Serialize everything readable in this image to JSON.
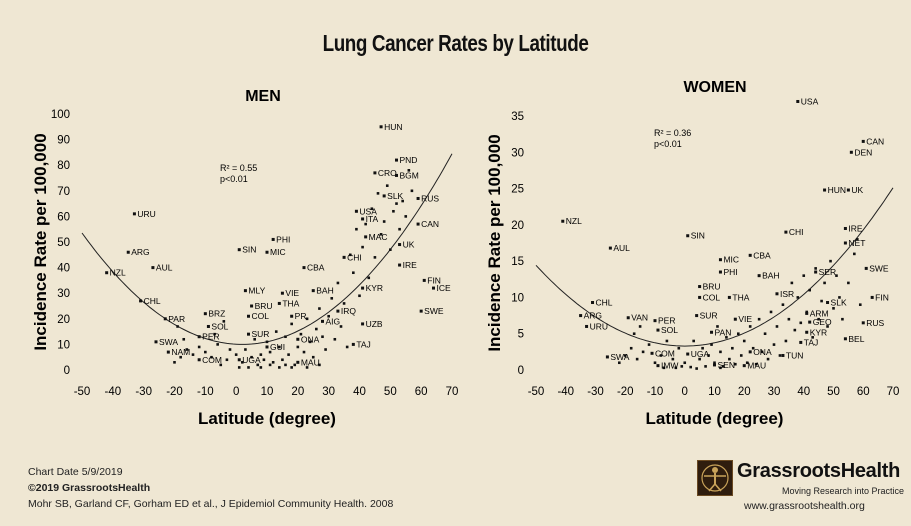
{
  "title": "Lung Cancer Rates by Latitude",
  "footer": {
    "chart_date": "Chart Date 5/9/2019",
    "copyright": "©2019 GrassrootsHealth",
    "citation": "Mohr SB, Garland CF, Gorham ED et al., J Epidemiol Community Health. 2008"
  },
  "brand": {
    "name": "GrassrootsHealth",
    "tagline": "Moving Research into Practice",
    "url": "www.grassrootshealth.org"
  },
  "colors": {
    "background": "#efe7d3",
    "ink": "#111111",
    "logo": "#2f1d0e"
  },
  "chart_data": [
    {
      "type": "scatter",
      "title": "MEN",
      "xlabel": "Latitude (degree)",
      "ylabel": "Incidence Rate per 100,000",
      "xlim": [
        -50,
        70
      ],
      "ylim": [
        0,
        100
      ],
      "xticks": [
        -50,
        -40,
        -30,
        -20,
        -10,
        0,
        10,
        20,
        30,
        40,
        50,
        60,
        70
      ],
      "yticks": [
        0,
        10,
        20,
        30,
        40,
        50,
        60,
        70,
        80,
        90,
        100
      ],
      "stat_r2": "R² = 0.55",
      "stat_p": "p<0.01",
      "trend": {
        "type": "quadratic",
        "vertex_x": 2,
        "vertex_y": 10,
        "a": 0.0161
      },
      "labeled_points": [
        {
          "label": "HUN",
          "x": 47,
          "y": 95
        },
        {
          "label": "PND",
          "x": 52,
          "y": 82
        },
        {
          "label": "CRO",
          "x": 45,
          "y": 77
        },
        {
          "label": "BGM",
          "x": 52,
          "y": 76
        },
        {
          "label": "SLK",
          "x": 48,
          "y": 68
        },
        {
          "label": "RUS",
          "x": 59,
          "y": 67
        },
        {
          "label": "URU",
          "x": -33,
          "y": 61
        },
        {
          "label": "USA",
          "x": 39,
          "y": 62
        },
        {
          "label": "ITA",
          "x": 41,
          "y": 59
        },
        {
          "label": "CAN",
          "x": 59,
          "y": 57
        },
        {
          "label": "PHI",
          "x": 12,
          "y": 51
        },
        {
          "label": "SIN",
          "x": 1,
          "y": 47
        },
        {
          "label": "MIC",
          "x": 10,
          "y": 46
        },
        {
          "label": "MAC",
          "x": 42,
          "y": 52
        },
        {
          "label": "UK",
          "x": 53,
          "y": 49
        },
        {
          "label": "ARG",
          "x": -35,
          "y": 46
        },
        {
          "label": "CHI",
          "x": 35,
          "y": 44
        },
        {
          "label": "AUL",
          "x": -27,
          "y": 40
        },
        {
          "label": "CBA",
          "x": 22,
          "y": 40
        },
        {
          "label": "IRE",
          "x": 53,
          "y": 41
        },
        {
          "label": "NZL",
          "x": -42,
          "y": 38
        },
        {
          "label": "FIN",
          "x": 61,
          "y": 35
        },
        {
          "label": "ICE",
          "x": 64,
          "y": 32
        },
        {
          "label": "MLY",
          "x": 3,
          "y": 31
        },
        {
          "label": "VIE",
          "x": 15,
          "y": 30
        },
        {
          "label": "BAH",
          "x": 25,
          "y": 31
        },
        {
          "label": "KYR",
          "x": 41,
          "y": 32
        },
        {
          "label": "CHL",
          "x": -31,
          "y": 27
        },
        {
          "label": "THA",
          "x": 14,
          "y": 26
        },
        {
          "label": "BRU",
          "x": 5,
          "y": 25
        },
        {
          "label": "IRQ",
          "x": 33,
          "y": 23
        },
        {
          "label": "SWE",
          "x": 60,
          "y": 23
        },
        {
          "label": "BRZ",
          "x": -10,
          "y": 22
        },
        {
          "label": "COL",
          "x": 4,
          "y": 21
        },
        {
          "label": "PR",
          "x": 18,
          "y": 21
        },
        {
          "label": "PAR",
          "x": -23,
          "y": 20
        },
        {
          "label": "AIG",
          "x": 28,
          "y": 19
        },
        {
          "label": "UZB",
          "x": 41,
          "y": 18
        },
        {
          "label": "SOL",
          "x": -9,
          "y": 17
        },
        {
          "label": "SUR",
          "x": 4,
          "y": 14
        },
        {
          "label": "PER",
          "x": -12,
          "y": 13
        },
        {
          "label": "SWA",
          "x": -26,
          "y": 11
        },
        {
          "label": "GUI",
          "x": 10,
          "y": 9
        },
        {
          "label": "TAJ",
          "x": 38,
          "y": 10
        },
        {
          "label": "NAM",
          "x": -22,
          "y": 7
        },
        {
          "label": "ONA",
          "x": 20,
          "y": 12
        },
        {
          "label": "COM",
          "x": -12,
          "y": 4
        },
        {
          "label": "UGA",
          "x": 1,
          "y": 4
        },
        {
          "label": "MAU",
          "x": 20,
          "y": 3
        }
      ],
      "unlabeled_points": [
        [
          -20,
          3
        ],
        [
          -18,
          5
        ],
        [
          -16,
          8
        ],
        [
          -14,
          6
        ],
        [
          -12,
          9
        ],
        [
          -10,
          7
        ],
        [
          -8,
          5
        ],
        [
          -6,
          10
        ],
        [
          -5,
          2
        ],
        [
          -3,
          4
        ],
        [
          -2,
          8
        ],
        [
          0,
          6
        ],
        [
          2,
          3
        ],
        [
          3,
          8
        ],
        [
          5,
          5
        ],
        [
          6,
          12
        ],
        [
          7,
          2
        ],
        [
          8,
          6
        ],
        [
          9,
          4
        ],
        [
          10,
          11
        ],
        [
          11,
          7
        ],
        [
          12,
          3
        ],
        [
          13,
          15
        ],
        [
          14,
          9
        ],
        [
          15,
          4
        ],
        [
          16,
          13
        ],
        [
          17,
          6
        ],
        [
          18,
          18
        ],
        [
          19,
          2
        ],
        [
          20,
          9
        ],
        [
          21,
          14
        ],
        [
          22,
          7
        ],
        [
          23,
          20
        ],
        [
          24,
          11
        ],
        [
          25,
          5
        ],
        [
          26,
          16
        ],
        [
          27,
          24
        ],
        [
          28,
          13
        ],
        [
          29,
          8
        ],
        [
          30,
          21
        ],
        [
          31,
          28
        ],
        [
          32,
          12
        ],
        [
          33,
          34
        ],
        [
          34,
          17
        ],
        [
          35,
          26
        ],
        [
          36,
          9
        ],
        [
          37,
          45
        ],
        [
          38,
          38
        ],
        [
          39,
          55
        ],
        [
          40,
          29
        ],
        [
          41,
          48
        ],
        [
          42,
          57
        ],
        [
          43,
          36
        ],
        [
          44,
          63
        ],
        [
          45,
          44
        ],
        [
          46,
          69
        ],
        [
          47,
          53
        ],
        [
          48,
          58
        ],
        [
          49,
          72
        ],
        [
          50,
          47
        ],
        [
          51,
          62
        ],
        [
          52,
          65
        ],
        [
          53,
          55
        ],
        [
          54,
          66
        ],
        [
          55,
          60
        ],
        [
          56,
          78
        ],
        [
          57,
          70
        ],
        [
          -19,
          17
        ],
        [
          -17,
          12
        ],
        [
          -7,
          14
        ],
        [
          -4,
          19
        ],
        [
          1,
          1
        ],
        [
          4,
          1
        ],
        [
          8,
          1
        ],
        [
          11,
          2
        ],
        [
          14,
          1
        ],
        [
          16,
          2
        ],
        [
          18,
          1
        ],
        [
          23,
          1
        ],
        [
          27,
          2
        ]
      ]
    },
    {
      "type": "scatter",
      "title": "WOMEN",
      "xlabel": "Latitude (degree)",
      "ylabel": "Incidence Rate per 100,000",
      "xlim": [
        -50,
        70
      ],
      "ylim": [
        0,
        35
      ],
      "xticks": [
        -50,
        -40,
        -30,
        -20,
        -10,
        0,
        10,
        20,
        30,
        40,
        50,
        60,
        70
      ],
      "yticks": [
        0,
        5,
        10,
        15,
        20,
        25,
        30,
        35
      ],
      "stat_r2": "R² = 0.36",
      "stat_p": "p<0.01",
      "trend": {
        "type": "quadratic",
        "vertex_x": 0,
        "vertex_y": 3.3,
        "a": 0.00445
      },
      "labeled_points": [
        {
          "label": "USA",
          "x": 38,
          "y": 37
        },
        {
          "label": "CAN",
          "x": 60,
          "y": 31.5
        },
        {
          "label": "DEN",
          "x": 56,
          "y": 30
        },
        {
          "label": "HUN",
          "x": 47,
          "y": 24.8
        },
        {
          "label": "UK",
          "x": 55,
          "y": 24.8
        },
        {
          "label": "NZL",
          "x": -41,
          "y": 20.5
        },
        {
          "label": "IRE",
          "x": 54,
          "y": 19.5
        },
        {
          "label": "SIN",
          "x": 1,
          "y": 18.5
        },
        {
          "label": "CHI",
          "x": 34,
          "y": 19
        },
        {
          "label": "NET",
          "x": 54,
          "y": 17.5
        },
        {
          "label": "AUL",
          "x": -25,
          "y": 16.8
        },
        {
          "label": "CBA",
          "x": 22,
          "y": 15.8
        },
        {
          "label": "MIC",
          "x": 12,
          "y": 15.2
        },
        {
          "label": "SWE",
          "x": 61,
          "y": 14
        },
        {
          "label": "PHI",
          "x": 12,
          "y": 13.5
        },
        {
          "label": "SER",
          "x": 44,
          "y": 13.5
        },
        {
          "label": "BAH",
          "x": 25,
          "y": 13
        },
        {
          "label": "BRU",
          "x": 5,
          "y": 11.5
        },
        {
          "label": "ISR",
          "x": 31,
          "y": 10.5
        },
        {
          "label": "FIN",
          "x": 63,
          "y": 10
        },
        {
          "label": "COL",
          "x": 5,
          "y": 10
        },
        {
          "label": "THA",
          "x": 15,
          "y": 10
        },
        {
          "label": "CHL",
          "x": -31,
          "y": 9.3
        },
        {
          "label": "SLK",
          "x": 48,
          "y": 9.3
        },
        {
          "label": "ARM",
          "x": 41,
          "y": 7.8
        },
        {
          "label": "ARG",
          "x": -35,
          "y": 7.5
        },
        {
          "label": "SUR",
          "x": 4,
          "y": 7.5
        },
        {
          "label": "VAN",
          "x": -19,
          "y": 7.2
        },
        {
          "label": "PER",
          "x": -10,
          "y": 6.8
        },
        {
          "label": "VIE",
          "x": 17,
          "y": 7
        },
        {
          "label": "GEO",
          "x": 42,
          "y": 6.6
        },
        {
          "label": "RUS",
          "x": 60,
          "y": 6.5
        },
        {
          "label": "URU",
          "x": -33,
          "y": 6
        },
        {
          "label": "SOL",
          "x": -9,
          "y": 5.5
        },
        {
          "label": "PAN",
          "x": 9,
          "y": 5.2
        },
        {
          "label": "KYR",
          "x": 41,
          "y": 5.2
        },
        {
          "label": "BEL",
          "x": 54,
          "y": 4.3
        },
        {
          "label": "TAJ",
          "x": 39,
          "y": 3.8
        },
        {
          "label": "SWA",
          "x": -26,
          "y": 1.8
        },
        {
          "label": "COM",
          "x": -11,
          "y": 2.3
        },
        {
          "label": "UGA",
          "x": 1,
          "y": 2.2
        },
        {
          "label": "ONA",
          "x": 22,
          "y": 2.5
        },
        {
          "label": "TUN",
          "x": 33,
          "y": 2
        },
        {
          "label": "IMW",
          "x": -9,
          "y": 0.6
        },
        {
          "label": "SEN",
          "x": 10,
          "y": 0.7
        },
        {
          "label": "MAU",
          "x": 20,
          "y": 0.6
        }
      ],
      "unlabeled_points": [
        [
          -22,
          1
        ],
        [
          -20,
          2
        ],
        [
          -18,
          3
        ],
        [
          -16,
          1.5
        ],
        [
          -14,
          2.5
        ],
        [
          -12,
          3.5
        ],
        [
          -10,
          1
        ],
        [
          -8,
          2
        ],
        [
          -6,
          4
        ],
        [
          -4,
          1.5
        ],
        [
          -2,
          3
        ],
        [
          -1,
          0.5
        ],
        [
          0,
          1
        ],
        [
          2,
          0.4
        ],
        [
          3,
          4
        ],
        [
          5,
          1.5
        ],
        [
          6,
          3
        ],
        [
          7,
          0.5
        ],
        [
          8,
          2
        ],
        [
          9,
          3.5
        ],
        [
          10,
          1
        ],
        [
          11,
          6
        ],
        [
          12,
          2.5
        ],
        [
          13,
          0.5
        ],
        [
          14,
          4.5
        ],
        [
          15,
          1.5
        ],
        [
          16,
          3
        ],
        [
          17,
          0.8
        ],
        [
          18,
          5
        ],
        [
          19,
          2
        ],
        [
          20,
          4
        ],
        [
          21,
          1
        ],
        [
          22,
          6
        ],
        [
          23,
          3
        ],
        [
          24,
          0.8
        ],
        [
          25,
          7
        ],
        [
          26,
          2.5
        ],
        [
          27,
          5
        ],
        [
          28,
          1.5
        ],
        [
          29,
          8
        ],
        [
          30,
          3.5
        ],
        [
          31,
          6
        ],
        [
          32,
          2
        ],
        [
          33,
          9
        ],
        [
          34,
          4
        ],
        [
          35,
          7
        ],
        [
          36,
          12
        ],
        [
          37,
          5.5
        ],
        [
          38,
          10
        ],
        [
          39,
          6.5
        ],
        [
          40,
          13
        ],
        [
          41,
          8
        ],
        [
          42,
          11
        ],
        [
          43,
          4.5
        ],
        [
          44,
          14
        ],
        [
          45,
          7
        ],
        [
          46,
          9.5
        ],
        [
          47,
          12
        ],
        [
          48,
          6
        ],
        [
          49,
          15
        ],
        [
          50,
          8.5
        ],
        [
          51,
          13
        ],
        [
          52,
          10
        ],
        [
          53,
          7
        ],
        [
          55,
          12
        ],
        [
          57,
          16
        ],
        [
          58,
          18
        ],
        [
          59,
          9
        ],
        [
          -17,
          5
        ],
        [
          -15,
          6
        ],
        [
          -7,
          0.3
        ],
        [
          -3,
          0.3
        ],
        [
          4,
          0.2
        ],
        [
          12,
          0.3
        ]
      ]
    }
  ]
}
